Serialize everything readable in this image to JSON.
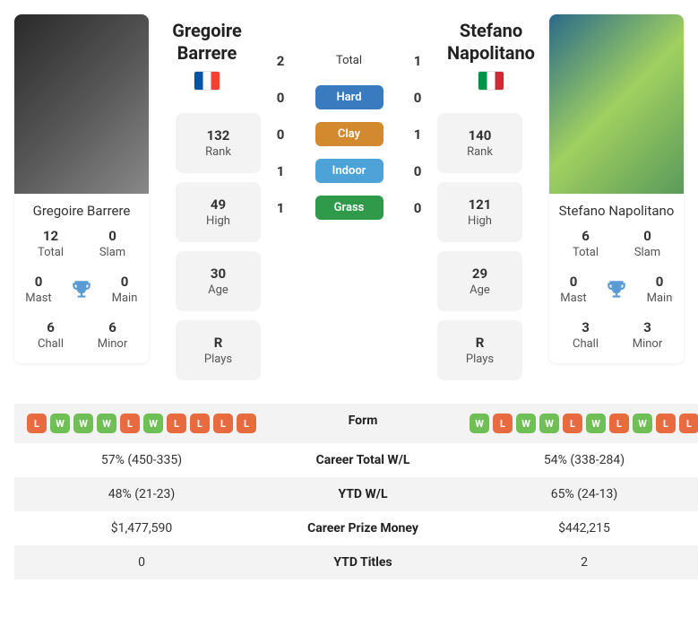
{
  "colors": {
    "win": "#6fbf56",
    "loss": "#e86a3f",
    "hard": "#3a7abf",
    "clay": "#d38a2e",
    "indoor": "#4da3d8",
    "grass": "#2e9a4a",
    "shade": "#f3f3f3"
  },
  "player1": {
    "name_first": "Gregoire",
    "name_last": "Barrere",
    "full_name": "Gregoire Barrere",
    "flag": "fr",
    "titles": {
      "total": {
        "val": "12",
        "lbl": "Total"
      },
      "slam": {
        "val": "0",
        "lbl": "Slam"
      },
      "mast": {
        "val": "0",
        "lbl": "Mast"
      },
      "main": {
        "val": "0",
        "lbl": "Main"
      },
      "chall": {
        "val": "6",
        "lbl": "Chall"
      },
      "minor": {
        "val": "6",
        "lbl": "Minor"
      }
    },
    "stats": {
      "rank": {
        "val": "132",
        "lbl": "Rank"
      },
      "high": {
        "val": "49",
        "lbl": "High"
      },
      "age": {
        "val": "30",
        "lbl": "Age"
      },
      "plays": {
        "val": "R",
        "lbl": "Plays"
      }
    },
    "form": [
      "L",
      "W",
      "W",
      "W",
      "L",
      "W",
      "L",
      "L",
      "L",
      "L"
    ],
    "career_wl": "57% (450-335)",
    "ytd_wl": "48% (21-23)",
    "prize": "$1,477,590",
    "ytd_titles": "0"
  },
  "player2": {
    "name_first": "Stefano",
    "name_last": "Napolitano",
    "full_name": "Stefano Napolitano",
    "flag": "it",
    "titles": {
      "total": {
        "val": "6",
        "lbl": "Total"
      },
      "slam": {
        "val": "0",
        "lbl": "Slam"
      },
      "mast": {
        "val": "0",
        "lbl": "Mast"
      },
      "main": {
        "val": "0",
        "lbl": "Main"
      },
      "chall": {
        "val": "3",
        "lbl": "Chall"
      },
      "minor": {
        "val": "3",
        "lbl": "Minor"
      }
    },
    "stats": {
      "rank": {
        "val": "140",
        "lbl": "Rank"
      },
      "high": {
        "val": "121",
        "lbl": "High"
      },
      "age": {
        "val": "29",
        "lbl": "Age"
      },
      "plays": {
        "val": "R",
        "lbl": "Plays"
      }
    },
    "form": [
      "W",
      "L",
      "W",
      "W",
      "L",
      "W",
      "L",
      "W",
      "L",
      "L"
    ],
    "career_wl": "54% (338-284)",
    "ytd_wl": "65% (24-13)",
    "prize": "$442,215",
    "ytd_titles": "2"
  },
  "h2h": {
    "total": {
      "p1": "2",
      "label": "Total",
      "p2": "1",
      "pill": false
    },
    "hard": {
      "p1": "0",
      "label": "Hard",
      "p2": "0",
      "pill": true,
      "color": "hard"
    },
    "clay": {
      "p1": "0",
      "label": "Clay",
      "p2": "1",
      "pill": true,
      "color": "clay"
    },
    "indoor": {
      "p1": "1",
      "label": "Indoor",
      "p2": "0",
      "pill": true,
      "color": "indoor"
    },
    "grass": {
      "p1": "1",
      "label": "Grass",
      "p2": "0",
      "pill": true,
      "color": "grass"
    }
  },
  "comp_labels": {
    "form": "Form",
    "career": "Career Total W/L",
    "ytd": "YTD W/L",
    "prize": "Career Prize Money",
    "ytd_titles": "YTD Titles"
  }
}
